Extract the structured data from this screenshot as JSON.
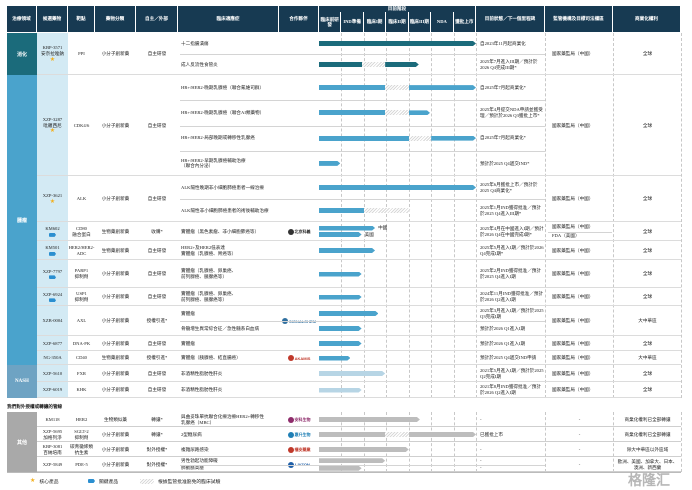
{
  "headers": {
    "area": "治療領域",
    "candidate": "候選藥物",
    "target": "靶點",
    "drug_class": "藥物分類",
    "source": "自主／外部",
    "indication": "臨床適應症",
    "partner": "合作夥伴",
    "stage_group": "目前階段",
    "stages": [
      "臨床前研發",
      "IND準備",
      "臨床I期",
      "臨床II期",
      "臨床III期",
      "NDA",
      "獲批上市"
    ],
    "status": "目前狀態／下一個里程碑",
    "regulator": "監管機構及目標司法權區",
    "rights": "商業化權利"
  },
  "areas": [
    {
      "name": "消化",
      "color": "#1b6b7b"
    },
    {
      "name": "腫瘤",
      "color": "#4aa3cc"
    },
    {
      "name": "NASH",
      "color": "#6ea3c3"
    },
    {
      "name": "其他",
      "color": "#a9a9a9"
    }
  ],
  "colors": {
    "header": "#173a52",
    "digestive_bar": "#1b6b7b",
    "oncology_bar": "#4aa3cc",
    "nash_bar": "#b7d5e5",
    "other_bar": "#bdbdbd"
  },
  "section_title": "我們對外授權或轉讓的管線",
  "drugs": [
    {
      "area": 0,
      "name": "KBP-3571\n安奈拉唑鈉",
      "mark": "star",
      "target": "PPI",
      "drug_class": "小分子創新藥",
      "source": "自主研發",
      "regulator": [
        "國家藥監局（中國）"
      ],
      "rights": "全球",
      "indications": [
        {
          "text": "十二指腸潰瘍",
          "bar": [
            [
              0,
              7,
              "s"
            ]
          ],
          "status": "自2023年11月起商業化"
        },
        {
          "text": "成人反流性食管炎",
          "bar": [
            [
              0,
              1.9,
              "s"
            ],
            [
              1.9,
              2.95,
              "h"
            ],
            [
              2.95,
              4.45,
              "s"
            ]
          ],
          "status": "2025年7月進入III期／預計於2026 Q4完成III期*"
        }
      ]
    },
    {
      "area": 1,
      "name": "XZP-3287\n吡羅西尼",
      "mark": "star",
      "target": "CDK4/6",
      "drug_class": "小分子創新藥",
      "source": "自主研發",
      "regulator": [
        "國家藥監局（中國）"
      ],
      "rights": "全球",
      "indications": [
        {
          "text": "HR+/HER2-晚期乳腺癌（聯合氟維司群）",
          "bar": [
            [
              0,
              2.95,
              "s"
            ],
            [
              2.95,
              4,
              "h"
            ],
            [
              4,
              7,
              "s"
            ]
          ],
          "status": "自2025年7月起商業化*"
        },
        {
          "text": "HR+/HER2-晚期乳腺癌（聯合AI類藥物）",
          "bar": [
            [
              0,
              2.95,
              "s"
            ],
            [
              2.95,
              4,
              "h"
            ],
            [
              4,
              4.95,
              "s"
            ]
          ],
          "status": "2025年4月提交NDA申請並獲受理／預計於2026 Q3獲批上市*"
        },
        {
          "text": "HR+/HER2-局部晚期或轉移性乳腺癌",
          "bar": [
            [
              0,
              4,
              "s"
            ],
            [
              4,
              5,
              "h"
            ],
            [
              5,
              7,
              "s"
            ]
          ],
          "status": "自2025年7月起商業化*"
        },
        {
          "text": "HR+/HER2-早期乳腺癌輔助治療\n（聯合內分泌）",
          "bar": [
            [
              0,
              0.95,
              "s"
            ]
          ],
          "status": "預計於2025 Q4遞交IND*"
        }
      ]
    },
    {
      "area": 1,
      "name": "XZP-3621",
      "mark": "star",
      "target": "ALK",
      "drug_class": "小分子創新藥",
      "source": "自主研發",
      "regulator": [
        "國家藥監局（中國）"
      ],
      "rights": "全球",
      "indications": [
        {
          "text": "ALK陽性晚期非小細胞肺癌患者一線治療",
          "bar": [
            [
              0,
              7,
              "s"
            ]
          ],
          "status": "2025年6月獲批上市／預計於2025 Q4商業化*"
        },
        {
          "text": "ALK陽性非小細胞肺癌患者的術後輔助治療",
          "bar": [
            [
              0,
              2,
              "s"
            ],
            [
              2,
              4.1,
              "h"
            ]
          ],
          "status": "2025年1月IND獲得批准／預計於2025 Q4進入III期*"
        }
      ]
    },
    {
      "area": 1,
      "name": "KM602",
      "mark": "tag",
      "target": "CD80\n融合蛋白",
      "drug_class": "生物藥創新藥",
      "source": "收購*",
      "partner": {
        "name": "北京科義",
        "color": "#333"
      },
      "regulator": [
        "國家藥監局（中國）",
        "FDA（美國）"
      ],
      "rights": "全球",
      "status": "2025年4月在中國進入I期／預計於2026 Q4在中國完成I期*",
      "indications": [
        {
          "text": "實體瘤（黑色素瘤、非小細胞肺癌等）",
          "bars": [
            {
              "label": "中國",
              "bar": [
                [
                  0,
                  2.5,
                  "s"
                ]
              ]
            },
            {
              "label": "美國",
              "bar": [
                [
                  0,
                  1.9,
                  "s"
                ]
              ]
            }
          ]
        }
      ]
    },
    {
      "area": 1,
      "name": "KM501",
      "mark": "tag",
      "target": "HER2/HER2-ADC",
      "drug_class": "生物藥創新藥",
      "source": "自主研發",
      "regulator": [
        "國家藥監局（中國）"
      ],
      "rights": "全球",
      "indications": [
        {
          "text": "HER2+及HER2低表達\n實體瘤（乳腺癌、胃癌等）",
          "bar": [
            [
              0,
              2.5,
              "s"
            ]
          ],
          "status": "2025年5月進入I期／預計於2026 Q4完成I期*"
        }
      ]
    },
    {
      "area": 1,
      "name": "XZP-7797",
      "mark": "tag",
      "target": "PARP1\n抑制劑",
      "drug_class": "小分子創新藥",
      "source": "自主研發",
      "regulator": [
        "國家藥監局（中國）"
      ],
      "rights": "全球",
      "indications": [
        {
          "text": "實體瘤（乳腺癌、卵巢癌、\n前列腺癌、胰腺癌等）",
          "bar": [
            [
              0,
              1.9,
              "s"
            ]
          ],
          "status": "2025年2月IND獲得批准／預計於2025 Q4進入I期"
        }
      ]
    },
    {
      "area": 1,
      "name": "XZP-6924",
      "mark": "tag",
      "target": "USP1\n抑制劑",
      "drug_class": "小分子創新藥",
      "source": "自主研發",
      "regulator": [
        "國家藥監局（中國）"
      ],
      "rights": "全球",
      "indications": [
        {
          "text": "實體瘤（乳腺癌、卵巢癌、\n前列腺癌、胰腺癌等）",
          "bar": [
            [
              0,
              1.9,
              "s"
            ]
          ],
          "status": "2024年11月IND獲得批准／預計於2026 Q2進入I期"
        }
      ]
    },
    {
      "area": 1,
      "name": "XZB-0004",
      "target": "AXL",
      "drug_class": "小分子創新藥",
      "source": "授權引進*",
      "partner": {
        "name": "SIGNALCHEM",
        "color": "#2f6f9f"
      },
      "regulator": [
        "國家藥監局（中國）"
      ],
      "rights": "大中華區",
      "indications": [
        {
          "text": "實體瘤",
          "bar": [
            [
              0,
              2.65,
              "s"
            ]
          ],
          "status": "2025年3月進入I期／預計於2025 Q3完成I期"
        },
        {
          "text": "骨髓增生異常綜合征／急性髓系白血病",
          "bar": [
            [
              0,
              1.9,
              "s"
            ]
          ],
          "status": "預計於2026 Q1進入I期"
        }
      ]
    },
    {
      "area": 1,
      "name": "XZP-6877",
      "target": "DNA-PK",
      "drug_class": "小分子創新藥",
      "source": "自主研發",
      "regulator": [
        "國家藥監局（中國）"
      ],
      "rights": "全球",
      "indications": [
        {
          "text": "實體瘤",
          "bar": [
            [
              0,
              1.9,
              "s"
            ]
          ],
          "status": "預計於2026 Q1進入I期"
        }
      ]
    },
    {
      "area": 1,
      "name": "NG-350A",
      "target": "CD40",
      "drug_class": "生物藥創新藥",
      "source": "授權引進*",
      "partner": {
        "name": "AKAMIS",
        "color": "#c0392b"
      },
      "regulator": [
        "國家藥監局（中國）"
      ],
      "rights": "大中華區",
      "indications": [
        {
          "text": "實體瘤（胰腺癌、結直腸癌）",
          "bar": [
            [
              0,
              1.4,
              "s"
            ]
          ],
          "status": "預計於2025 Q4遞交IND申請"
        }
      ]
    },
    {
      "area": 2,
      "name": "XZP-5610",
      "target": "FXR",
      "drug_class": "小分子創新藥",
      "source": "自主研發",
      "regulator": [
        "國家藥監局（中國）"
      ],
      "rights": "全球",
      "indications": [
        {
          "text": "非酒精性脂肪性肝炎",
          "bar": [
            [
              0,
              2.95,
              "s"
            ]
          ],
          "status": "2021年5月進入I期／預計於2025 Q2完成I期"
        }
      ]
    },
    {
      "area": 2,
      "name": "XZP-6019",
      "target": "KHK",
      "drug_class": "小分子創新藥",
      "source": "自主研發",
      "regulator": [
        "國家藥監局（中國）"
      ],
      "rights": "全球",
      "indications": [
        {
          "text": "非酒精性脂肪性肝炎",
          "bar": [
            [
              0,
              1.9,
              "s"
            ]
          ],
          "status": "2021年8月IND獲得批准／預計於2026 Q2進入I期"
        }
      ]
    },
    {
      "area": 3,
      "name": "KM118",
      "target": "HER2",
      "drug_class": "生物類似藥",
      "source": "轉讓*",
      "partner": {
        "name": "安科生物",
        "color": "#8e2c6b"
      },
      "regulator": [
        "-"
      ],
      "rights": "商業化權利已全部轉讓",
      "indications": [
        {
          "text": "與曲妥珠單抗聯合化療治療HER2+轉移性\n乳腺癌（MBC）",
          "bar": [
            [
              0,
              4.5,
              "s"
            ]
          ],
          "status": "-"
        }
      ]
    },
    {
      "area": 3,
      "name": "XZP-5695\n加格列淨",
      "target": "SGLT-2\n抑制劑",
      "drug_class": "小分子創新藥",
      "source": "轉讓*",
      "partner": {
        "name": "惠升生物",
        "color": "#1f7fb5"
      },
      "regulator": [
        "-"
      ],
      "rights": "商業化權利已全部轉讓",
      "indications": [
        {
          "text": "2型糖尿病",
          "bar": [
            [
              0,
              2.95,
              "s"
            ],
            [
              2.95,
              4,
              "h"
            ],
            [
              4,
              7,
              "s"
            ]
          ],
          "status": "已獲批上市"
        }
      ]
    },
    {
      "area": 3,
      "name": "KBP-3081\n百納培南",
      "target": "碳青黴烯類\n抗生素",
      "drug_class": "小分子創新藥",
      "source": "對外授權*",
      "partner": {
        "name": "福安藥業",
        "color": "#c0392b"
      },
      "regulator": [
        "-"
      ],
      "rights": "除大中華區以外區域",
      "indications": [
        {
          "text": "複雜尿路感染",
          "bar": [
            [
              0,
              4,
              "s"
            ]
          ],
          "status": "-"
        }
      ]
    },
    {
      "area": 3,
      "name": "XZP-5849",
      "target": "PDE-5",
      "drug_class": "小分子創新藥",
      "source": "對外授權*",
      "partner": {
        "name": "LIVZON",
        "color": "#1f5fa8"
      },
      "regulator": [
        "-"
      ],
      "rights": "歐洲、美國、加拿大、日本、澳洲、新西蘭",
      "indications": [
        {
          "text": "男性勃起功能障礙",
          "bar": [
            [
              0,
              2.95,
              "s"
            ]
          ],
          "status": "-"
        },
        {
          "text": "肺動脈高壓",
          "bar": [
            [
              0,
              1.9,
              "s"
            ]
          ],
          "status": "-"
        }
      ]
    }
  ],
  "legend": {
    "core": "核心產品",
    "key": "關鍵產品",
    "skipped": "根據監管批准豁免的臨床試驗"
  },
  "watermark": "格隆汇"
}
